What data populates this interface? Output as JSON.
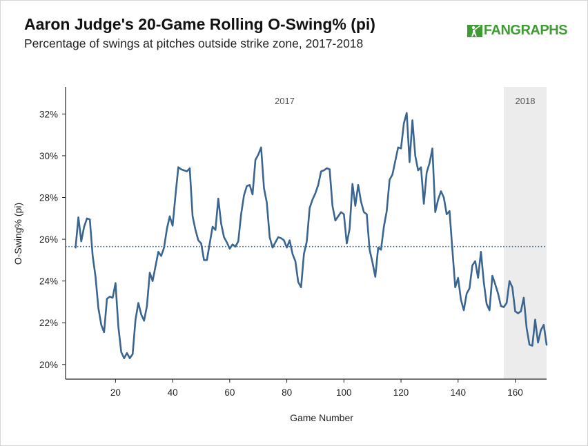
{
  "header": {
    "title": "Aaron Judge's 20-Game Rolling O-Swing% (pi)",
    "subtitle": "Percentage of swings at pitches outside strike zone, 2017-2018",
    "logo_text": "FANGRAPHS"
  },
  "colors": {
    "line": "#3b6591",
    "mean_line": "#3b6591",
    "shade_2018": "#ececec",
    "logo_green": "#3f9b33"
  },
  "chart_data": {
    "type": "line",
    "title": "Aaron Judge's 20-Game Rolling O-Swing% (pi)",
    "subtitle": "Percentage of swings at pitches outside strike zone, 2017-2018",
    "xlabel": "Game Number",
    "ylabel": "O-Swing% (pi)",
    "xlim": [
      2.5,
      171
    ],
    "ylim": [
      19.3,
      33.3
    ],
    "x_ticks": [
      20,
      40,
      60,
      80,
      100,
      120,
      140,
      160
    ],
    "y_ticks": [
      20,
      22,
      24,
      26,
      28,
      30,
      32
    ],
    "y_tick_labels": [
      "20%",
      "22%",
      "24%",
      "26%",
      "28%",
      "30%",
      "32%"
    ],
    "grid": false,
    "mean_line": 25.65,
    "regions": [
      {
        "label": "2017",
        "x_start": 2.5,
        "x_end": 156
      },
      {
        "label": "2018",
        "x_start": 156,
        "x_end": 171
      }
    ],
    "series": [
      {
        "x": [
          6,
          7,
          8,
          9,
          10,
          11,
          12,
          13,
          14,
          15,
          16,
          17,
          18,
          19,
          20,
          21,
          22,
          23,
          24,
          25,
          26,
          27,
          28,
          29,
          30,
          31,
          32,
          33,
          34,
          35,
          36,
          37,
          38,
          39,
          40,
          41,
          42,
          43,
          44,
          45,
          46,
          47,
          48,
          49,
          50,
          51,
          52,
          53,
          54,
          55,
          56,
          57,
          58,
          59,
          60,
          61,
          62,
          63,
          64,
          65,
          66,
          67,
          68,
          69,
          70,
          71,
          72,
          73,
          74,
          75,
          76,
          77,
          78,
          79,
          80,
          81,
          82,
          83,
          84,
          85,
          86,
          87,
          88,
          89,
          90,
          91,
          92,
          93,
          94,
          95,
          96,
          97,
          98,
          99,
          100,
          101,
          102,
          103,
          104,
          105,
          106,
          107,
          108,
          109,
          110,
          111,
          112,
          113,
          114,
          115,
          116,
          117,
          118,
          119,
          120,
          121,
          122,
          123,
          124,
          125,
          126,
          127,
          128,
          129,
          130,
          131,
          132,
          133,
          134,
          135,
          136,
          137,
          138,
          139,
          140,
          141,
          142,
          143,
          144,
          145,
          146,
          147,
          148,
          149,
          150,
          151,
          152,
          153,
          154,
          155,
          156,
          157,
          158,
          159,
          160,
          161,
          162,
          163,
          164,
          165,
          166,
          167,
          168,
          169,
          170,
          171
        ],
        "values": [
          25.6,
          27.05,
          25.9,
          26.6,
          27.0,
          26.95,
          25.2,
          24.2,
          22.7,
          21.9,
          21.55,
          23.15,
          23.25,
          23.2,
          23.9,
          21.8,
          20.6,
          20.3,
          20.55,
          20.3,
          20.5,
          22.15,
          22.95,
          22.4,
          22.1,
          22.8,
          24.4,
          24.0,
          24.7,
          25.4,
          25.2,
          25.6,
          26.5,
          27.1,
          26.65,
          28.1,
          29.45,
          29.35,
          29.3,
          29.25,
          29.4,
          27.1,
          26.45,
          25.95,
          25.8,
          25.0,
          25.0,
          25.8,
          26.6,
          26.45,
          27.95,
          26.75,
          26.1,
          25.85,
          25.55,
          25.75,
          25.65,
          25.9,
          27.2,
          28.1,
          28.55,
          28.6,
          28.15,
          29.8,
          30.05,
          30.4,
          28.45,
          27.75,
          26.1,
          25.6,
          25.85,
          26.1,
          26.05,
          25.95,
          25.6,
          25.95,
          25.3,
          24.95,
          23.95,
          23.7,
          25.3,
          25.9,
          27.5,
          27.9,
          28.2,
          28.6,
          29.25,
          29.3,
          29.4,
          29.35,
          27.6,
          26.9,
          27.1,
          27.3,
          27.2,
          25.8,
          26.5,
          28.65,
          27.6,
          28.6,
          27.8,
          27.3,
          27.2,
          25.5,
          24.9,
          24.2,
          25.6,
          25.5,
          26.6,
          27.35,
          28.85,
          29.1,
          29.75,
          30.4,
          30.35,
          31.55,
          32.05,
          29.7,
          31.7,
          30.0,
          29.3,
          29.45,
          27.7,
          29.2,
          29.65,
          30.35,
          27.3,
          27.9,
          28.3,
          28.0,
          27.2,
          27.35,
          25.5,
          23.7,
          24.15,
          23.1,
          22.6,
          23.4,
          23.65,
          24.75,
          24.95,
          24.15,
          25.4,
          23.95,
          22.9,
          22.6,
          24.25,
          23.85,
          23.4,
          22.8,
          22.75,
          22.95,
          24.0,
          23.7,
          22.55,
          22.45,
          22.55,
          23.2,
          21.75,
          20.95,
          20.9,
          22.15,
          21.05,
          21.65,
          21.9,
          20.95
        ]
      }
    ]
  }
}
